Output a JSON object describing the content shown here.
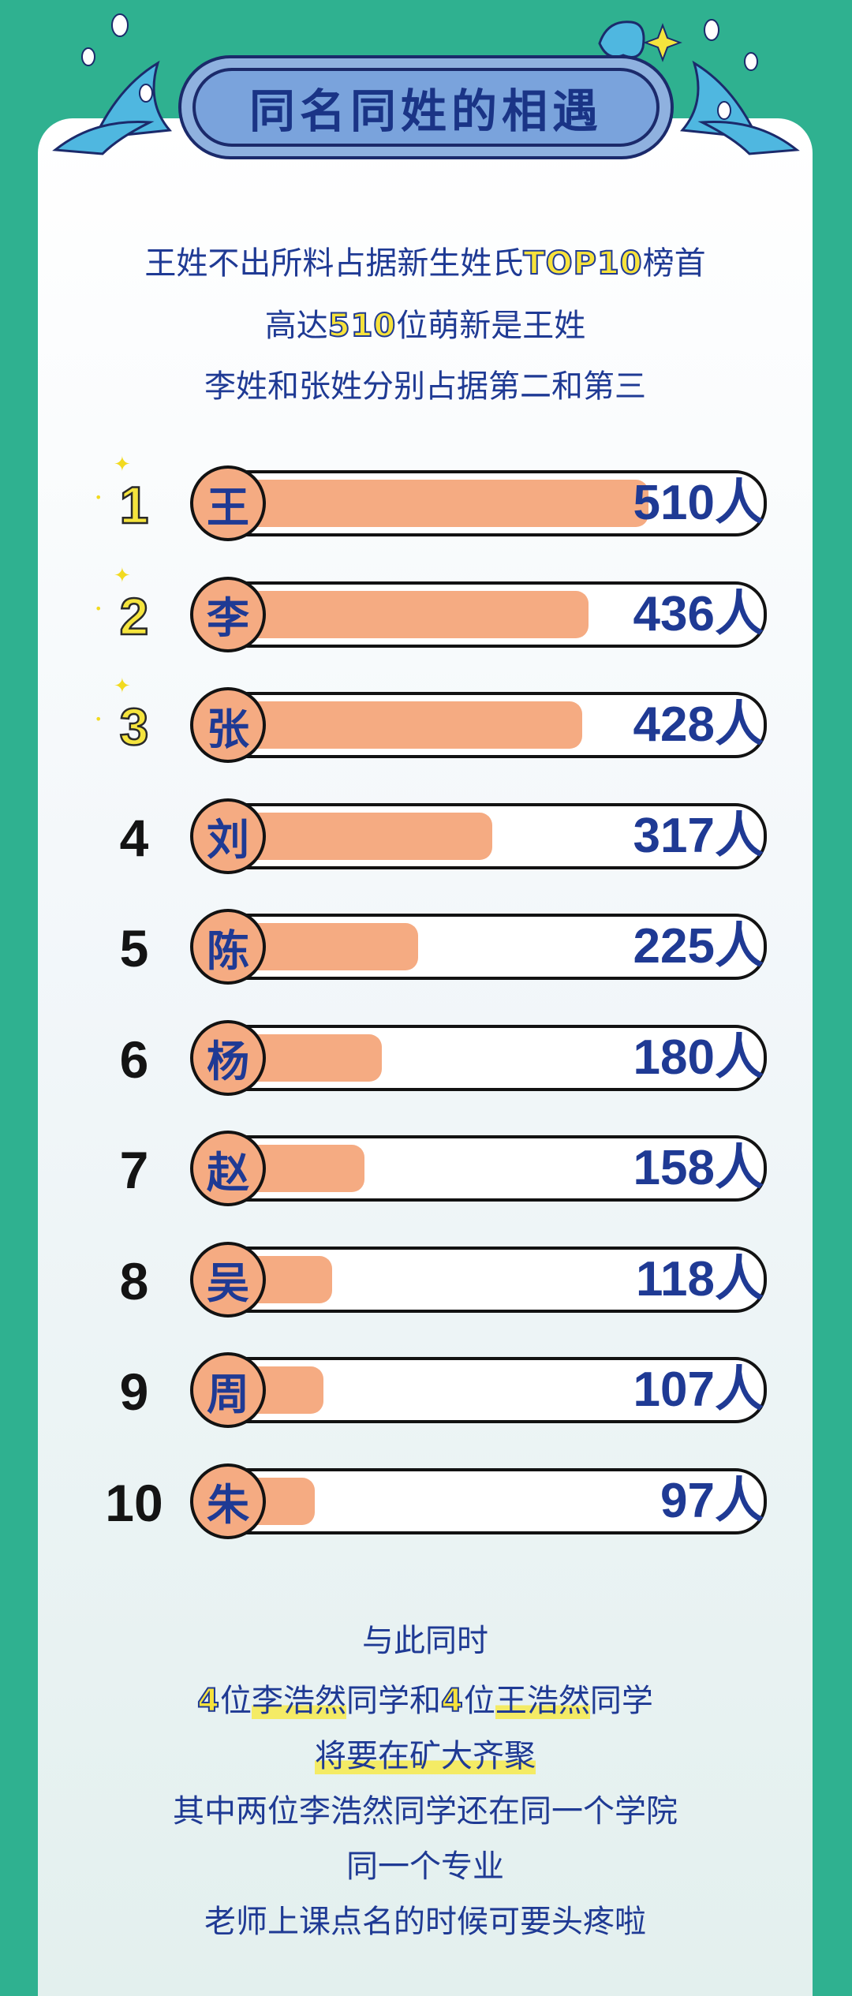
{
  "title": "同名同姓的相遇",
  "intro": {
    "line1": {
      "a": "王姓不出所料占据新生姓氏",
      "b": "TOP10",
      "c": "榜首"
    },
    "line2": {
      "a": "高达",
      "b": "510",
      "c": "位萌新是王姓"
    },
    "line3": "李姓和张姓分别占据第二和第三"
  },
  "unit": "人",
  "chart_data": {
    "type": "bar",
    "orientation": "horizontal",
    "categories": [
      "王",
      "李",
      "张",
      "刘",
      "陈",
      "杨",
      "赵",
      "吴",
      "周",
      "朱"
    ],
    "ranks": [
      "1",
      "2",
      "3",
      "4",
      "5",
      "6",
      "7",
      "8",
      "9",
      "10"
    ],
    "values": [
      510,
      436,
      428,
      317,
      225,
      180,
      158,
      118,
      107,
      97
    ],
    "value_labels": [
      "510人",
      "436人",
      "428人",
      "317人",
      "225人",
      "180人",
      "158人",
      "118人",
      "107人",
      "97人"
    ],
    "title": "",
    "xlabel": "",
    "ylabel": "",
    "colors": {
      "bar": "#f5ab82",
      "text": "#1f3a94",
      "highlight": "#f5e43d"
    }
  },
  "outro": {
    "line1": "与此同时",
    "line2": {
      "n1": "4",
      "t1": "位",
      "name1": "李浩然",
      "t2": "同学和",
      "n2": "4",
      "t3": "位",
      "name2": "王浩然",
      "t4": "同学"
    },
    "line3": "将要在矿大齐聚",
    "line4": "其中两位李浩然同学还在同一个学院",
    "line5": "同一个专业",
    "line6": "老师上课点名的时候可要头疼啦"
  }
}
